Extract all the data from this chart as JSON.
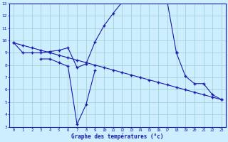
{
  "xlabel": "Graphe des températures (°c)",
  "xlim": [
    -0.5,
    23.5
  ],
  "ylim": [
    3,
    13
  ],
  "yticks": [
    3,
    4,
    5,
    6,
    7,
    8,
    9,
    10,
    11,
    12,
    13
  ],
  "xticks": [
    0,
    1,
    2,
    3,
    4,
    5,
    6,
    7,
    8,
    9,
    10,
    11,
    12,
    13,
    14,
    15,
    16,
    17,
    18,
    19,
    20,
    21,
    22,
    23
  ],
  "background_color": "#cceeff",
  "line_color": "#1a1aaa",
  "grid_color": "#99cccc",
  "line1_x": [
    0,
    1,
    2,
    3,
    4,
    5,
    6,
    7,
    8,
    9,
    10,
    11,
    12,
    13,
    14,
    15,
    16,
    17,
    18
  ],
  "line1_y": [
    9.8,
    9.0,
    9.0,
    9.0,
    9.1,
    9.2,
    9.4,
    7.8,
    8.1,
    9.9,
    11.2,
    12.2,
    13.1,
    13.1,
    13.3,
    13.2,
    13.3,
    13.1,
    9.0
  ],
  "line2_x": [
    3,
    4,
    5,
    6,
    7,
    8,
    9
  ],
  "line2_y": [
    8.5,
    8.5,
    8.2,
    7.9,
    3.2,
    4.8,
    7.6
  ],
  "line3_x": [
    0,
    1,
    2,
    3,
    4,
    5,
    6,
    7,
    8,
    9,
    10,
    11,
    12,
    13,
    14,
    15,
    16,
    17,
    18,
    19,
    20,
    21,
    22,
    23
  ],
  "line3_y": [
    9.8,
    9.6,
    9.4,
    9.2,
    9.0,
    8.8,
    8.6,
    8.4,
    8.2,
    8.0,
    7.8,
    7.6,
    7.4,
    7.2,
    7.0,
    6.8,
    6.6,
    6.4,
    6.2,
    6.0,
    5.8,
    5.6,
    5.4,
    5.2
  ],
  "line4_x": [
    18,
    19,
    20,
    21,
    22,
    23
  ],
  "line4_y": [
    9.0,
    7.1,
    6.5,
    6.5,
    5.6,
    5.2
  ]
}
